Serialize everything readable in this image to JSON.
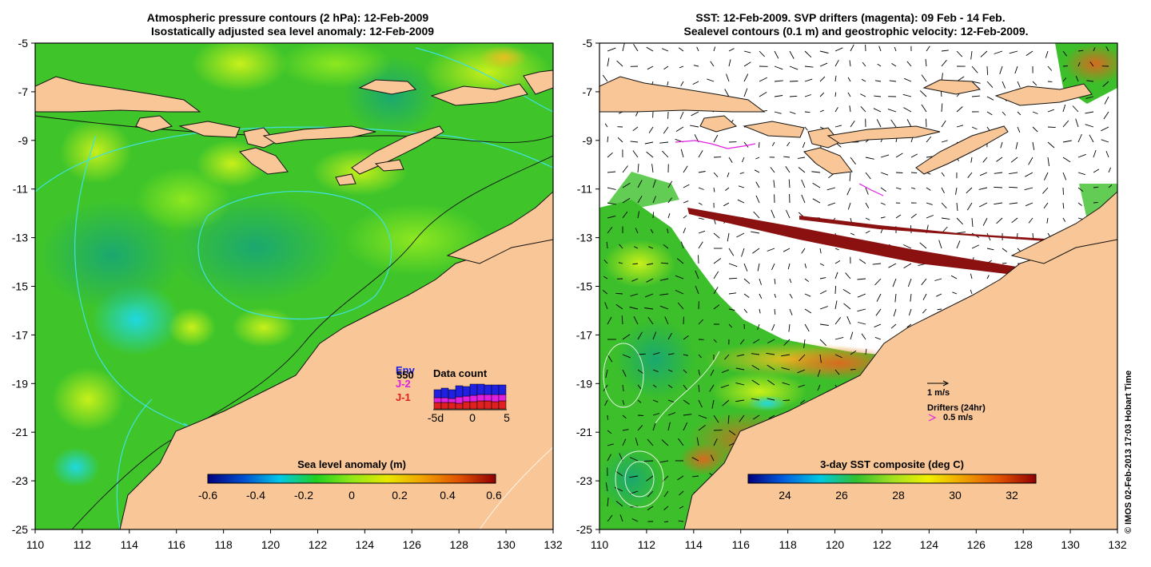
{
  "left_panel": {
    "title_line1": "Atmospheric pressure contours (2 hPa): 12-Feb-2009",
    "title_line2": "Isostatically adjusted sea level anomaly: 12-Feb-2009",
    "colorbar_label": "Sea level anomaly (m)",
    "colorbar_ticks": [
      "-0.6",
      "-0.4",
      "-0.2",
      "0",
      "0.2",
      "0.4",
      "0.6"
    ],
    "legend": {
      "title": "Data count",
      "labels": [
        {
          "text": "Env",
          "color": "#2020e0"
        },
        {
          "text": "J-2",
          "color": "#e020e0"
        },
        {
          "text": "J-1",
          "color": "#e02020"
        }
      ],
      "hidden_number": "550",
      "axis_ticks": [
        "-5d",
        "0",
        "5"
      ]
    }
  },
  "right_panel": {
    "title_line1": "SST: 12-Feb-2009. SVP drifters (magenta): 09 Feb - 14 Feb.",
    "title_line2": "Sealevel contours (0.1 m) and geostrophic velocity: 12-Feb-2009.",
    "colorbar_label": "3-day SST composite (deg C)",
    "colorbar_ticks": [
      "24",
      "26",
      "28",
      "30",
      "32"
    ],
    "velocity_scale_label": "1 m/s",
    "drifter_title": "Drifters (24hr)",
    "drifter_scale_label": "0.5 m/s"
  },
  "axes": {
    "x_ticks": [
      "110",
      "112",
      "114",
      "116",
      "118",
      "120",
      "122",
      "124",
      "126",
      "128",
      "130",
      "132"
    ],
    "y_ticks": [
      "-5",
      "-7",
      "-9",
      "-11",
      "-13",
      "-15",
      "-17",
      "-19",
      "-21",
      "-23",
      "-25"
    ]
  },
  "credit": "© IMOS 02-Feb-2013 17:03 Hobart Time",
  "colors": {
    "land": "#f9c797",
    "ssh_base": "#3fc52a",
    "colorbar_ssh": [
      "#00007f",
      "#0050d0",
      "#00c8e8",
      "#20d020",
      "#90e818",
      "#e8e800",
      "#f0a000",
      "#e05000",
      "#900000"
    ],
    "colorbar_sst": [
      "#00007f",
      "#0060e0",
      "#00c8e0",
      "#30c030",
      "#a0e020",
      "#f0f000",
      "#f0a000",
      "#e05000",
      "#900000"
    ]
  }
}
